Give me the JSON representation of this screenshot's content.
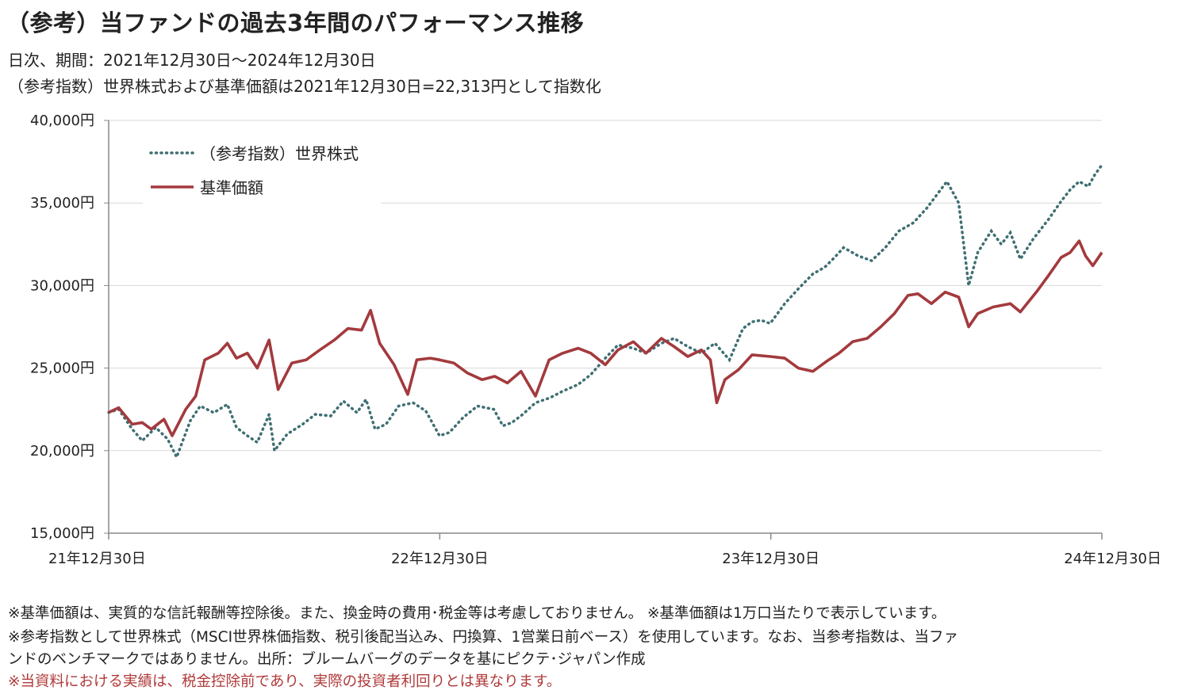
{
  "header": {
    "title": "（参考）当ファンドの過去3年間のパフォーマンス推移",
    "subtitle1": "日次、期間：2021年12月30日～2024年12月30日",
    "subtitle2": "（参考指数）世界株式および基準価額は2021年12月30日=22,313円として指数化"
  },
  "notes": {
    "note1": "※基準価額は、実質的な信託報酬等控除後。また、換金時の費用･税金等は考慮しておりません。 ※基準価額は1万口当たりで表示しています。",
    "note2": "※参考指数として世界株式（MSCI世界株価指数、税引後配当込み、円換算、1営業日前ベース）を使用しています。なお、当参考指数は、当ファ",
    "note3": "ンドのベンチマークではありません。出所：ブルームバーグのデータを基にピクテ･ジャパン作成",
    "note4": "※当資料における実績は、税金控除前であり、実際の投資者利回りとは異なります。"
  },
  "colors": {
    "nav": "#a33a3e",
    "index": "#3f6f73",
    "grid": "#d8d8d8",
    "axis": "#888888"
  },
  "chart_data": {
    "type": "line",
    "ylim": [
      15000,
      40000
    ],
    "yticks": [
      15000,
      20000,
      25000,
      30000,
      35000,
      40000
    ],
    "ytick_labels": [
      "15,000円",
      "20,000円",
      "25,000円",
      "30,000円",
      "35,000円",
      "40,000円"
    ],
    "xlim": [
      "2021-12-30",
      "2024-12-30"
    ],
    "xtick_labels": [
      "21年12月30日",
      "22年12月30日",
      "23年12月30日",
      "24年12月30日"
    ],
    "grid": true,
    "legend_position": "top-left",
    "series": [
      {
        "name": "（参考指数）世界株式",
        "style": "dotted",
        "points": [
          [
            "2021-12-30",
            22313
          ],
          [
            "2022-01-10",
            22500
          ],
          [
            "2022-01-25",
            21300
          ],
          [
            "2022-02-05",
            20600
          ],
          [
            "2022-02-20",
            21400
          ],
          [
            "2022-03-05",
            20700
          ],
          [
            "2022-03-15",
            19600
          ],
          [
            "2022-03-30",
            21800
          ],
          [
            "2022-04-10",
            22700
          ],
          [
            "2022-04-25",
            22300
          ],
          [
            "2022-05-10",
            22800
          ],
          [
            "2022-05-20",
            21400
          ],
          [
            "2022-06-01",
            20900
          ],
          [
            "2022-06-12",
            20500
          ],
          [
            "2022-06-25",
            22200
          ],
          [
            "2022-07-01",
            20000
          ],
          [
            "2022-07-15",
            21000
          ],
          [
            "2022-08-01",
            21600
          ],
          [
            "2022-08-15",
            22200
          ],
          [
            "2022-09-01",
            22100
          ],
          [
            "2022-09-15",
            23000
          ],
          [
            "2022-09-30",
            22300
          ],
          [
            "2022-10-10",
            23100
          ],
          [
            "2022-10-20",
            21300
          ],
          [
            "2022-11-01",
            21600
          ],
          [
            "2022-11-15",
            22700
          ],
          [
            "2022-12-01",
            22900
          ],
          [
            "2022-12-15",
            22400
          ],
          [
            "2022-12-30",
            20900
          ],
          [
            "2023-01-10",
            21100
          ],
          [
            "2023-01-25",
            22000
          ],
          [
            "2023-02-10",
            22700
          ],
          [
            "2023-02-28",
            22500
          ],
          [
            "2023-03-10",
            21500
          ],
          [
            "2023-03-20",
            21700
          ],
          [
            "2023-04-01",
            22200
          ],
          [
            "2023-04-15",
            22900
          ],
          [
            "2023-05-01",
            23200
          ],
          [
            "2023-05-15",
            23600
          ],
          [
            "2023-06-01",
            24000
          ],
          [
            "2023-06-15",
            24600
          ],
          [
            "2023-07-01",
            25600
          ],
          [
            "2023-07-15",
            26400
          ],
          [
            "2023-08-01",
            26200
          ],
          [
            "2023-08-15",
            25900
          ],
          [
            "2023-09-01",
            26500
          ],
          [
            "2023-09-15",
            26800
          ],
          [
            "2023-09-30",
            26300
          ],
          [
            "2023-10-15",
            25900
          ],
          [
            "2023-10-30",
            26500
          ],
          [
            "2023-11-15",
            25500
          ],
          [
            "2023-11-30",
            27400
          ],
          [
            "2023-12-10",
            27800
          ],
          [
            "2023-12-20",
            27900
          ],
          [
            "2023-12-30",
            27700
          ],
          [
            "2024-01-15",
            28900
          ],
          [
            "2024-01-30",
            29800
          ],
          [
            "2024-02-15",
            30700
          ],
          [
            "2024-02-28",
            31100
          ],
          [
            "2024-03-10",
            31700
          ],
          [
            "2024-03-20",
            32300
          ],
          [
            "2024-04-05",
            31800
          ],
          [
            "2024-04-20",
            31500
          ],
          [
            "2024-05-05",
            32300
          ],
          [
            "2024-05-20",
            33300
          ],
          [
            "2024-06-05",
            33800
          ],
          [
            "2024-06-20",
            34700
          ],
          [
            "2024-07-05",
            35800
          ],
          [
            "2024-07-12",
            36300
          ],
          [
            "2024-07-25",
            35000
          ],
          [
            "2024-08-05",
            30000
          ],
          [
            "2024-08-15",
            32000
          ],
          [
            "2024-08-30",
            33300
          ],
          [
            "2024-09-10",
            32500
          ],
          [
            "2024-09-20",
            33200
          ],
          [
            "2024-10-01",
            31600
          ],
          [
            "2024-10-15",
            32800
          ],
          [
            "2024-11-01",
            34000
          ],
          [
            "2024-11-15",
            35100
          ],
          [
            "2024-11-25",
            35800
          ],
          [
            "2024-12-05",
            36300
          ],
          [
            "2024-12-15",
            36000
          ],
          [
            "2024-12-22",
            36700
          ],
          [
            "2024-12-30",
            37300
          ]
        ]
      },
      {
        "name": "基準価額",
        "style": "solid",
        "points": [
          [
            "2021-12-30",
            22313
          ],
          [
            "2022-01-10",
            22600
          ],
          [
            "2022-01-25",
            21600
          ],
          [
            "2022-02-05",
            21700
          ],
          [
            "2022-02-15",
            21300
          ],
          [
            "2022-03-01",
            21900
          ],
          [
            "2022-03-10",
            20900
          ],
          [
            "2022-03-25",
            22500
          ],
          [
            "2022-04-05",
            23300
          ],
          [
            "2022-04-15",
            25500
          ],
          [
            "2022-04-30",
            25900
          ],
          [
            "2022-05-10",
            26500
          ],
          [
            "2022-05-20",
            25600
          ],
          [
            "2022-06-01",
            25900
          ],
          [
            "2022-06-12",
            25000
          ],
          [
            "2022-06-25",
            26700
          ],
          [
            "2022-07-05",
            23700
          ],
          [
            "2022-07-20",
            25300
          ],
          [
            "2022-08-05",
            25500
          ],
          [
            "2022-08-20",
            26100
          ],
          [
            "2022-09-05",
            26700
          ],
          [
            "2022-09-20",
            27400
          ],
          [
            "2022-10-05",
            27300
          ],
          [
            "2022-10-15",
            28500
          ],
          [
            "2022-10-25",
            26500
          ],
          [
            "2022-11-10",
            25200
          ],
          [
            "2022-11-25",
            23400
          ],
          [
            "2022-12-05",
            25500
          ],
          [
            "2022-12-20",
            25600
          ],
          [
            "2022-12-30",
            25500
          ],
          [
            "2023-01-15",
            25300
          ],
          [
            "2023-01-30",
            24700
          ],
          [
            "2023-02-15",
            24300
          ],
          [
            "2023-03-01",
            24500
          ],
          [
            "2023-03-15",
            24100
          ],
          [
            "2023-03-30",
            24800
          ],
          [
            "2023-04-15",
            23300
          ],
          [
            "2023-04-30",
            25500
          ],
          [
            "2023-05-15",
            25900
          ],
          [
            "2023-06-01",
            26200
          ],
          [
            "2023-06-15",
            25900
          ],
          [
            "2023-07-01",
            25200
          ],
          [
            "2023-07-15",
            26100
          ],
          [
            "2023-08-01",
            26600
          ],
          [
            "2023-08-15",
            25900
          ],
          [
            "2023-09-01",
            26800
          ],
          [
            "2023-09-15",
            26300
          ],
          [
            "2023-09-30",
            25700
          ],
          [
            "2023-10-15",
            26100
          ],
          [
            "2023-10-25",
            25500
          ],
          [
            "2023-11-01",
            22900
          ],
          [
            "2023-11-10",
            24300
          ],
          [
            "2023-11-25",
            24900
          ],
          [
            "2023-12-10",
            25800
          ],
          [
            "2023-12-30",
            25700
          ],
          [
            "2024-01-15",
            25600
          ],
          [
            "2024-01-30",
            25000
          ],
          [
            "2024-02-15",
            24800
          ],
          [
            "2024-03-01",
            25400
          ],
          [
            "2024-03-15",
            25900
          ],
          [
            "2024-03-30",
            26600
          ],
          [
            "2024-04-15",
            26800
          ],
          [
            "2024-04-30",
            27500
          ],
          [
            "2024-05-15",
            28300
          ],
          [
            "2024-05-30",
            29400
          ],
          [
            "2024-06-10",
            29500
          ],
          [
            "2024-06-25",
            28900
          ],
          [
            "2024-07-10",
            29600
          ],
          [
            "2024-07-25",
            29300
          ],
          [
            "2024-08-05",
            27500
          ],
          [
            "2024-08-15",
            28300
          ],
          [
            "2024-09-01",
            28700
          ],
          [
            "2024-09-20",
            28900
          ],
          [
            "2024-10-01",
            28400
          ],
          [
            "2024-10-20",
            29700
          ],
          [
            "2024-11-01",
            30600
          ],
          [
            "2024-11-15",
            31700
          ],
          [
            "2024-11-25",
            32000
          ],
          [
            "2024-12-05",
            32700
          ],
          [
            "2024-12-12",
            31800
          ],
          [
            "2024-12-20",
            31200
          ],
          [
            "2024-12-30",
            32000
          ]
        ]
      }
    ]
  }
}
